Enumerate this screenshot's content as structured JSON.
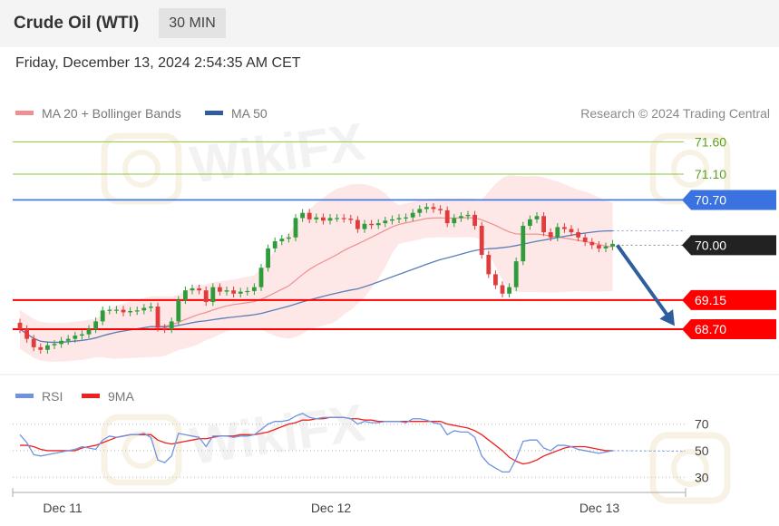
{
  "header": {
    "title": "Crude Oil (WTI)",
    "timeframe": "30 MIN"
  },
  "datetime": "Friday, December 13, 2024 2:54:35 AM CET",
  "colors": {
    "up": "#2e9c3a",
    "down": "#e23b3b",
    "ma20": "#f08f8f",
    "ma50": "#5a7fb6",
    "band": "#fbd3d3",
    "support": "#ff0000",
    "resistance_blue": "#3a72e0",
    "resistance_green": "#8ec63f",
    "last": "#222222",
    "arrow": "#2e5e9e",
    "rsi": "#6f93e0",
    "rsi_ma": "#ef2020"
  },
  "chart_data": [
    {
      "type": "candlestick",
      "legend": [
        {
          "label": "MA 20 + Bollinger Bands",
          "color": "#f08f8f"
        },
        {
          "label": "MA 50",
          "color": "#2e5e9e"
        }
      ],
      "credit": "Research © 2024 Trading Central",
      "ylim": [
        68.25,
        71.9
      ],
      "levels": [
        {
          "value": 71.6,
          "label": "71.60",
          "style": "green"
        },
        {
          "value": 71.1,
          "label": "71.10",
          "style": "green"
        },
        {
          "value": 70.7,
          "label": "70.70",
          "style": "blue"
        },
        {
          "value": 70.0,
          "label": "70.00",
          "style": "last"
        },
        {
          "value": 69.15,
          "label": "69.15",
          "style": "red"
        },
        {
          "value": 68.7,
          "label": "68.70",
          "style": "red"
        }
      ],
      "projection": {
        "from": 70.0,
        "to": 68.75
      },
      "xticks": [
        "Dec 11",
        "Dec 12",
        "Dec 13"
      ],
      "closes": [
        68.7,
        68.55,
        68.42,
        68.38,
        68.45,
        68.47,
        68.52,
        68.55,
        68.6,
        68.62,
        68.7,
        68.82,
        68.99,
        69.0,
        69.0,
        68.96,
        68.98,
        68.99,
        69.03,
        69.05,
        68.72,
        68.7,
        68.82,
        69.15,
        69.3,
        69.33,
        69.3,
        69.12,
        69.35,
        69.28,
        69.3,
        69.25,
        69.28,
        69.29,
        69.35,
        69.65,
        69.95,
        70.06,
        70.1,
        70.12,
        70.42,
        70.5,
        70.4,
        70.43,
        70.38,
        70.42,
        70.42,
        70.41,
        70.39,
        70.25,
        70.33,
        70.31,
        70.34,
        70.38,
        70.4,
        70.42,
        70.43,
        70.5,
        70.56,
        70.59,
        70.56,
        70.54,
        70.34,
        70.42,
        70.45,
        70.47,
        70.3,
        69.85,
        69.55,
        69.38,
        69.25,
        69.35,
        69.75,
        70.3,
        70.4,
        70.45,
        70.2,
        70.12,
        70.28,
        70.25,
        70.2,
        70.12,
        70.05,
        70.0,
        69.95,
        69.98,
        70.02
      ]
    },
    {
      "type": "line",
      "legend": [
        {
          "label": "RSI",
          "color": "#6f93e0"
        },
        {
          "label": "9MA",
          "color": "#ef2020"
        }
      ],
      "ylim": [
        22,
        82
      ],
      "yticks": [
        "70",
        "50",
        "30"
      ],
      "rsi": [
        62,
        56,
        47,
        46,
        47,
        48,
        49,
        50,
        51,
        53,
        52,
        51,
        58,
        61,
        60,
        61,
        62,
        62,
        63,
        60,
        43,
        41,
        46,
        63,
        62,
        61,
        60,
        53,
        61,
        61,
        61,
        60,
        61,
        61,
        62,
        66,
        70,
        72,
        72,
        73,
        76,
        78,
        75,
        74,
        75,
        75,
        75,
        75,
        74,
        70,
        72,
        71,
        71,
        72,
        72,
        72,
        71,
        74,
        74,
        73,
        71,
        70,
        62,
        65,
        64,
        64,
        60,
        46,
        40,
        37,
        34,
        34,
        44,
        57,
        58,
        58,
        52,
        50,
        54,
        54,
        53,
        51,
        50,
        49,
        48,
        49,
        50
      ],
      "rsi_ma": [
        54,
        54,
        53,
        51,
        50,
        50,
        50,
        50,
        50,
        52,
        53,
        54,
        56,
        58,
        60,
        61,
        62,
        62,
        62,
        62,
        58,
        56,
        55,
        56,
        57,
        58,
        59,
        59,
        60,
        61,
        61,
        61,
        62,
        62,
        62,
        63,
        64,
        66,
        68,
        70,
        71,
        73,
        73,
        74,
        74,
        75,
        75,
        75,
        74,
        74,
        73,
        73,
        72,
        72,
        72,
        72,
        72,
        72,
        72,
        72,
        72,
        72,
        70,
        69,
        68,
        67,
        65,
        62,
        58,
        54,
        50,
        45,
        42,
        40,
        41,
        43,
        46,
        48,
        50,
        52,
        53,
        53,
        53,
        52,
        51,
        50,
        50
      ]
    }
  ]
}
